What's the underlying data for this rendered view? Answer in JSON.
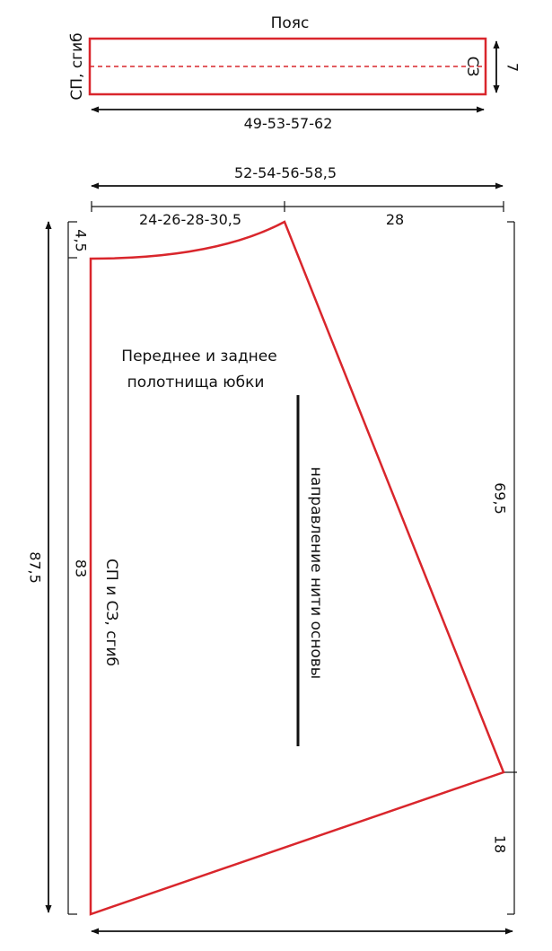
{
  "belt": {
    "title": "Пояс",
    "left_label": "СП, сгиб",
    "right_label": "СЗ",
    "height": "7",
    "width": "49-53-57-62"
  },
  "skirt": {
    "top_total": "52-54-56-58,5",
    "top_left": "24-26-28-30,5",
    "top_right": "28",
    "left_drop": "4,5",
    "total_height": "87,5",
    "left_side": "83",
    "right_upper": "69,5",
    "right_lower": "18",
    "title_line1": "Переднее и заднее",
    "title_line2": "полотнища юбки",
    "fold_label": "СП и СЗ, сгиб",
    "grain_label": "направление нити основы"
  },
  "colors": {
    "outline": "#d9262c",
    "ink": "#111111"
  }
}
